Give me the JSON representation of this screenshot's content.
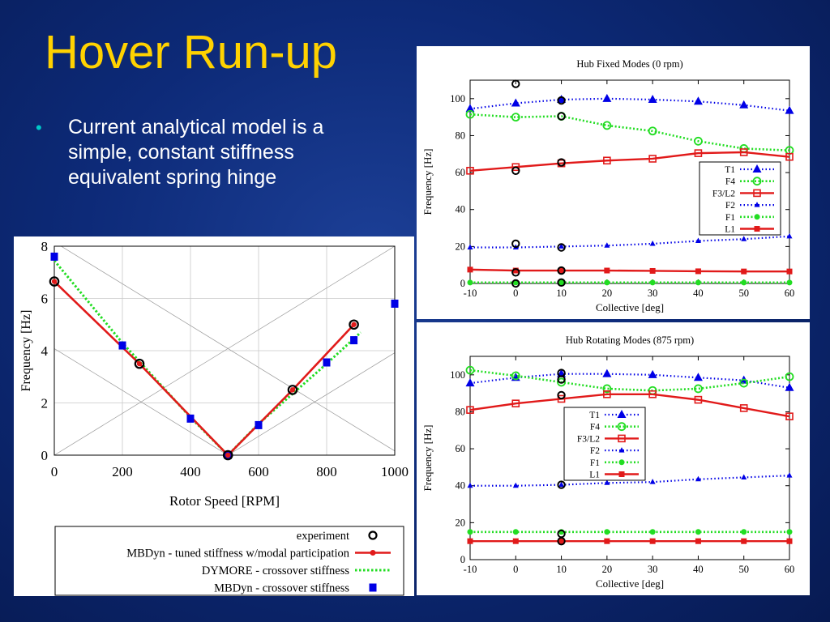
{
  "slide": {
    "title": "Hover Run-up",
    "bullets": [
      "Current analytical model is a simple, constant stiffness equivalent spring hinge"
    ]
  },
  "colors": {
    "blue": "#0000e6",
    "green": "#22dd22",
    "red": "#e11a1a",
    "title": "#ffd200",
    "bullet": "#00c8c8"
  },
  "chart_data": [
    {
      "type": "line",
      "title": "Hub Fixed Modes (0 rpm)",
      "xlabel": "Collective [deg]",
      "ylabel": "Frequency [Hz]",
      "xlim": [
        -10,
        60
      ],
      "ylim": [
        0,
        110
      ],
      "xticks": [
        -10,
        0,
        10,
        20,
        30,
        40,
        50,
        60
      ],
      "yticks": [
        0,
        20,
        40,
        60,
        80,
        100
      ],
      "legend": "right-middle",
      "x": [
        -10,
        0,
        10,
        20,
        30,
        40,
        50,
        60
      ],
      "series": [
        {
          "name": "T1",
          "style": "dot-blue-triangle",
          "values": [
            94.5,
            97.5,
            99.5,
            100,
            99.5,
            98.5,
            96.5,
            93.5
          ]
        },
        {
          "name": "F4",
          "style": "dot-green-circle",
          "values": [
            91.5,
            90,
            90.5,
            85.5,
            82.5,
            77,
            73,
            72
          ]
        },
        {
          "name": "F3/L2",
          "style": "solid-red-square",
          "values": [
            61,
            63,
            65,
            66.5,
            67.5,
            70.5,
            71,
            68.5
          ]
        },
        {
          "name": "F2",
          "style": "dot-blue-smalltriangle",
          "values": [
            19.5,
            19.5,
            20,
            20.5,
            21.5,
            23,
            24,
            25.5
          ]
        },
        {
          "name": "F1",
          "style": "dot-green-dot",
          "values": [
            0.5,
            0.5,
            0.5,
            0.5,
            0.5,
            0.5,
            0.5,
            0.5
          ]
        },
        {
          "name": "L1",
          "style": "solid-red-filledsquare",
          "values": [
            7.5,
            7,
            7,
            7,
            6.8,
            6.6,
            6.5,
            6.5
          ]
        }
      ],
      "experiment_points": [
        {
          "x": 0,
          "y": 108
        },
        {
          "x": 0,
          "y": 61
        },
        {
          "x": 0,
          "y": 21.5
        },
        {
          "x": 0,
          "y": 6
        },
        {
          "x": 0,
          "y": 0
        },
        {
          "x": 10,
          "y": 99
        },
        {
          "x": 10,
          "y": 90.5
        },
        {
          "x": 10,
          "y": 65.5
        },
        {
          "x": 10,
          "y": 19.5
        },
        {
          "x": 10,
          "y": 7
        },
        {
          "x": 10,
          "y": 0.5
        }
      ]
    },
    {
      "type": "line",
      "title": "Hub Rotating Modes (875 rpm)",
      "xlabel": "Collective [deg]",
      "ylabel": "Frequency [Hz]",
      "xlim": [
        -10,
        60
      ],
      "ylim": [
        0,
        110
      ],
      "xticks": [
        -10,
        0,
        10,
        20,
        30,
        40,
        50,
        60
      ],
      "yticks": [
        0,
        20,
        40,
        60,
        80,
        100
      ],
      "legend": "center",
      "x": [
        -10,
        0,
        10,
        20,
        30,
        40,
        50,
        60
      ],
      "series": [
        {
          "name": "T1",
          "style": "dot-blue-triangle",
          "values": [
            95.5,
            98.5,
            100.5,
            100.5,
            100,
            98.5,
            97,
            93
          ]
        },
        {
          "name": "F4",
          "style": "dot-green-circle",
          "values": [
            102.5,
            99.5,
            96,
            92.5,
            91.5,
            92.5,
            95.5,
            99
          ]
        },
        {
          "name": "F3/L2",
          "style": "solid-red-square",
          "values": [
            81,
            84.5,
            87,
            89.5,
            89.5,
            86.5,
            82,
            77.5
          ]
        },
        {
          "name": "F2",
          "style": "dot-blue-smalltriangle",
          "values": [
            40,
            40,
            40.5,
            41.5,
            42,
            43.5,
            44.5,
            45.5
          ]
        },
        {
          "name": "F1",
          "style": "dot-green-dot",
          "values": [
            15,
            15,
            15,
            15,
            15,
            15,
            15,
            15
          ]
        },
        {
          "name": "L1",
          "style": "solid-red-filledsquare",
          "values": [
            10,
            10,
            10,
            10,
            10,
            10,
            10,
            10
          ]
        }
      ],
      "experiment_points": [
        {
          "x": 10,
          "y": 101
        },
        {
          "x": 10,
          "y": 97.5
        },
        {
          "x": 10,
          "y": 89
        },
        {
          "x": 10,
          "y": 40.5
        },
        {
          "x": 10,
          "y": 14
        },
        {
          "x": 10,
          "y": 10
        }
      ]
    },
    {
      "type": "line",
      "title": "",
      "xlabel": "Rotor Speed [RPM]",
      "ylabel": "Frequency [Hz]",
      "xlim": [
        0,
        1000
      ],
      "ylim": [
        0,
        8
      ],
      "xticks": [
        0,
        200,
        400,
        600,
        800,
        1000
      ],
      "yticks": [
        0,
        2,
        4,
        6,
        8
      ],
      "legend": "bottom",
      "grid": true,
      "series": [
        {
          "name": "experiment",
          "style": "marker-black-ring",
          "points": [
            [
              0,
              6.65
            ],
            [
              250,
              3.5
            ],
            [
              510,
              0
            ],
            [
              700,
              2.5
            ],
            [
              880,
              5
            ]
          ]
        },
        {
          "name": "MBDyn - tuned stiffness w/modal participation",
          "style": "solid-red-dot",
          "points": [
            [
              0,
              6.65
            ],
            [
              250,
              3.5
            ],
            [
              510,
              0
            ],
            [
              700,
              2.5
            ],
            [
              880,
              5
            ]
          ]
        },
        {
          "name": "DYMORE - crossover stiffness",
          "style": "dot-green",
          "points": [
            [
              0,
              7.45
            ],
            [
              200,
              4.3
            ],
            [
              400,
              1.45
            ],
            [
              510,
              0
            ],
            [
              600,
              1.2
            ],
            [
              700,
              2.35
            ],
            [
              800,
              3.5
            ],
            [
              900,
              4.7
            ]
          ]
        },
        {
          "name": "MBDyn - crossover stiffness",
          "style": "marker-blue-square",
          "points": [
            [
              0,
              7.6
            ],
            [
              200,
              4.2
            ],
            [
              400,
              1.4
            ],
            [
              510,
              0
            ],
            [
              600,
              1.15
            ],
            [
              800,
              3.55
            ],
            [
              880,
              4.4
            ],
            [
              1000,
              5.8
            ]
          ]
        }
      ],
      "reference_lines": [
        [
          [
            0,
            0
          ],
          [
            1000,
            8
          ]
        ],
        [
          [
            0,
            4.08
          ],
          [
            510,
            0
          ]
        ],
        [
          [
            0,
            8.16
          ],
          [
            1020,
            0
          ]
        ],
        [
          [
            510,
            0
          ],
          [
            1000,
            3.92
          ]
        ],
        [
          [
            1020,
            0
          ],
          [
            1000,
            0.08
          ]
        ]
      ]
    }
  ]
}
